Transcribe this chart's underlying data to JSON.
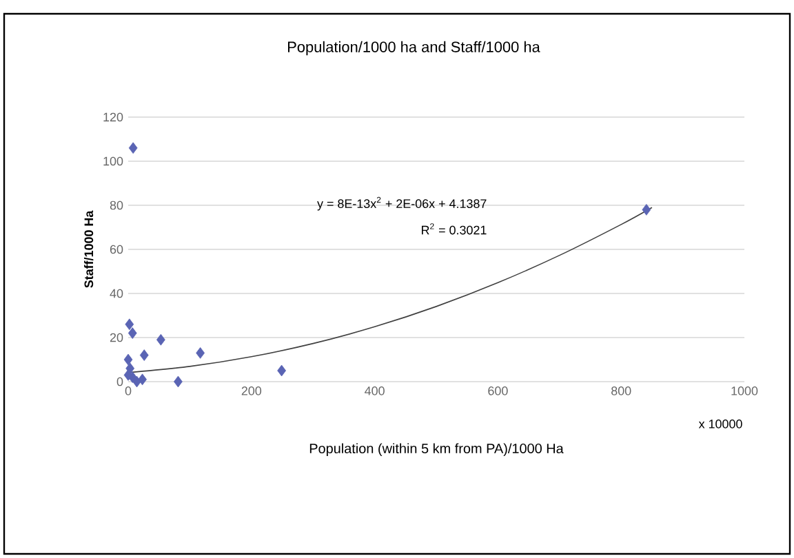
{
  "chart_data": {
    "type": "scatter",
    "title": "Population/1000 ha and Staff/1000 ha",
    "xlabel": "Population (within 5 km from PA)/1000 Ha",
    "ylabel": "Staff/1000 Ha",
    "annotations": [
      "y = 8E-13x$^{2}$ + 2E-06x + 4.1387",
      "R$^{2}$ = 0.3021",
      "x 10000"
    ],
    "series": [
      {
        "color": "#5a64b4",
        "x": [
          8,
          2,
          7,
          26,
          53,
          117,
          81,
          249,
          0,
          3,
          7,
          14,
          23,
          0,
          841
        ],
        "values": [
          106,
          26,
          22,
          12,
          19,
          13,
          0,
          5,
          10,
          6,
          2,
          0,
          1,
          3,
          78
        ]
      },
      {
        "type": "line",
        "marker": "none",
        "color": "#404040",
        "x": [
          0,
          100,
          200,
          300,
          400,
          500,
          600,
          700,
          800,
          850
        ],
        "values": [
          4.1,
          6.9,
          11.3,
          17.3,
          24.9,
          34.1,
          44.9,
          57.3,
          71.3,
          79
        ]
      }
    ],
    "marker": "diamond",
    "grid": "y",
    "xlim": [
      0,
      1000
    ],
    "ylim": [
      0,
      120
    ],
    "xticks": [
      0,
      200,
      400,
      600,
      800,
      1000
    ],
    "yticks": [
      0,
      20,
      40,
      60,
      80,
      100,
      120
    ]
  }
}
